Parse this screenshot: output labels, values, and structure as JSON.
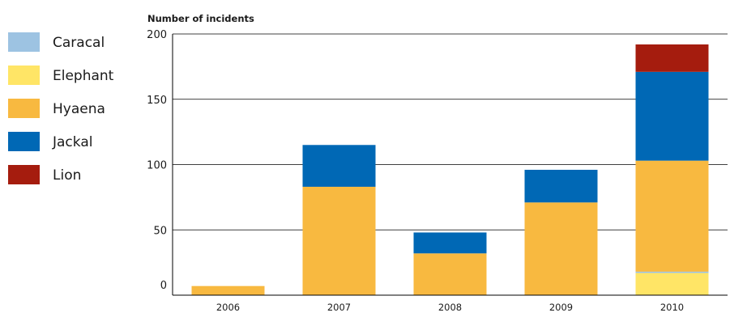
{
  "chart_data": {
    "type": "bar",
    "stacked": true,
    "title": "",
    "xlabel": "",
    "ylabel": "Number of incidents",
    "ylim": [
      0,
      200
    ],
    "yticks": [
      0,
      50,
      100,
      150,
      200
    ],
    "categories": [
      "2006",
      "2007",
      "2008",
      "2009",
      "2010"
    ],
    "series": [
      {
        "name": "Elephant",
        "color": "#FFE566",
        "values": [
          0,
          0,
          0,
          0,
          17
        ]
      },
      {
        "name": "Caracal",
        "color": "#9DC3E2",
        "values": [
          0,
          0,
          0,
          0,
          1
        ]
      },
      {
        "name": "Hyaena",
        "color": "#F8B940",
        "values": [
          7,
          83,
          32,
          71,
          85
        ]
      },
      {
        "name": "Jackal",
        "color": "#0068B5",
        "values": [
          0,
          32,
          16,
          25,
          68
        ]
      },
      {
        "name": "Lion",
        "color": "#A51C0E",
        "values": [
          0,
          0,
          0,
          0,
          21
        ]
      }
    ],
    "legend": {
      "position": "left",
      "order": [
        "Caracal",
        "Elephant",
        "Hyaena",
        "Jackal",
        "Lion"
      ]
    },
    "grid": "horizontal"
  }
}
